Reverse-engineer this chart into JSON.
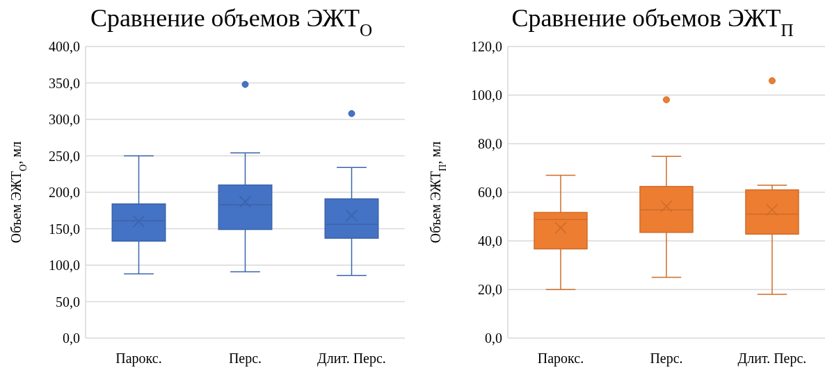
{
  "chart_data": [
    {
      "type": "box",
      "title": "Сравнение объемов ЭЖТ$_{О}$",
      "ylabel": "Объем ЭЖТ$_{О}$, мл",
      "categories": [
        "Парокс.",
        "Перс.",
        "Длит. Перс."
      ],
      "color": "#4472c4",
      "grid": "y",
      "marker": "cross",
      "boxes": [
        {
          "low": 88,
          "q1": 133,
          "median": 161,
          "q3": 184,
          "high": 250,
          "mean": 160
        },
        {
          "low": 91,
          "q1": 149,
          "median": 183,
          "q3": 210,
          "high": 254,
          "mean": 187,
          "outliers": [
            348
          ]
        },
        {
          "low": 86,
          "q1": 137,
          "median": 156,
          "q3": 191,
          "high": 234,
          "mean": 168,
          "outliers": [
            308
          ]
        }
      ],
      "ylim": [
        0,
        400
      ],
      "yticks": [
        {
          "value": 0,
          "label": "0,0"
        },
        {
          "value": 50,
          "label": "50,0"
        },
        {
          "value": 100,
          "label": "100,0"
        },
        {
          "value": 150,
          "label": "150,0"
        },
        {
          "value": 200,
          "label": "200,0"
        },
        {
          "value": 250,
          "label": "250,0"
        },
        {
          "value": 300,
          "label": "300,0"
        },
        {
          "value": 350,
          "label": "350,0"
        },
        {
          "value": 400,
          "label": "400,0"
        }
      ]
    },
    {
      "type": "box",
      "title": "Сравнение объемов ЭЖТ$_{П}$",
      "ylabel": "Объем ЭЖТ$_{П}$, мл",
      "categories": [
        "Парокс.",
        "Перс.",
        "Длит. Перс."
      ],
      "color": "#ed7d31",
      "grid": "y",
      "marker": "cross",
      "boxes": [
        {
          "low": 20,
          "q1": 36.7,
          "median": 48.8,
          "q3": 51.7,
          "high": 67,
          "mean": 45.4
        },
        {
          "low": 25,
          "q1": 43.5,
          "median": 52.8,
          "q3": 62.4,
          "high": 74.8,
          "mean": 54.2,
          "outliers": [
            98.1
          ]
        },
        {
          "low": 18,
          "q1": 42.8,
          "median": 51,
          "q3": 61,
          "high": 62.9,
          "mean": 52.8,
          "outliers": [
            105.9
          ]
        }
      ],
      "ylim": [
        0,
        120
      ],
      "yticks": [
        {
          "value": 0,
          "label": "0,0"
        },
        {
          "value": 20,
          "label": "20,0"
        },
        {
          "value": 40,
          "label": "40,0"
        },
        {
          "value": 60,
          "label": "60,0"
        },
        {
          "value": 80,
          "label": "80,0"
        },
        {
          "value": 100,
          "label": "100,0"
        },
        {
          "value": 120,
          "label": "120,0"
        }
      ]
    }
  ]
}
